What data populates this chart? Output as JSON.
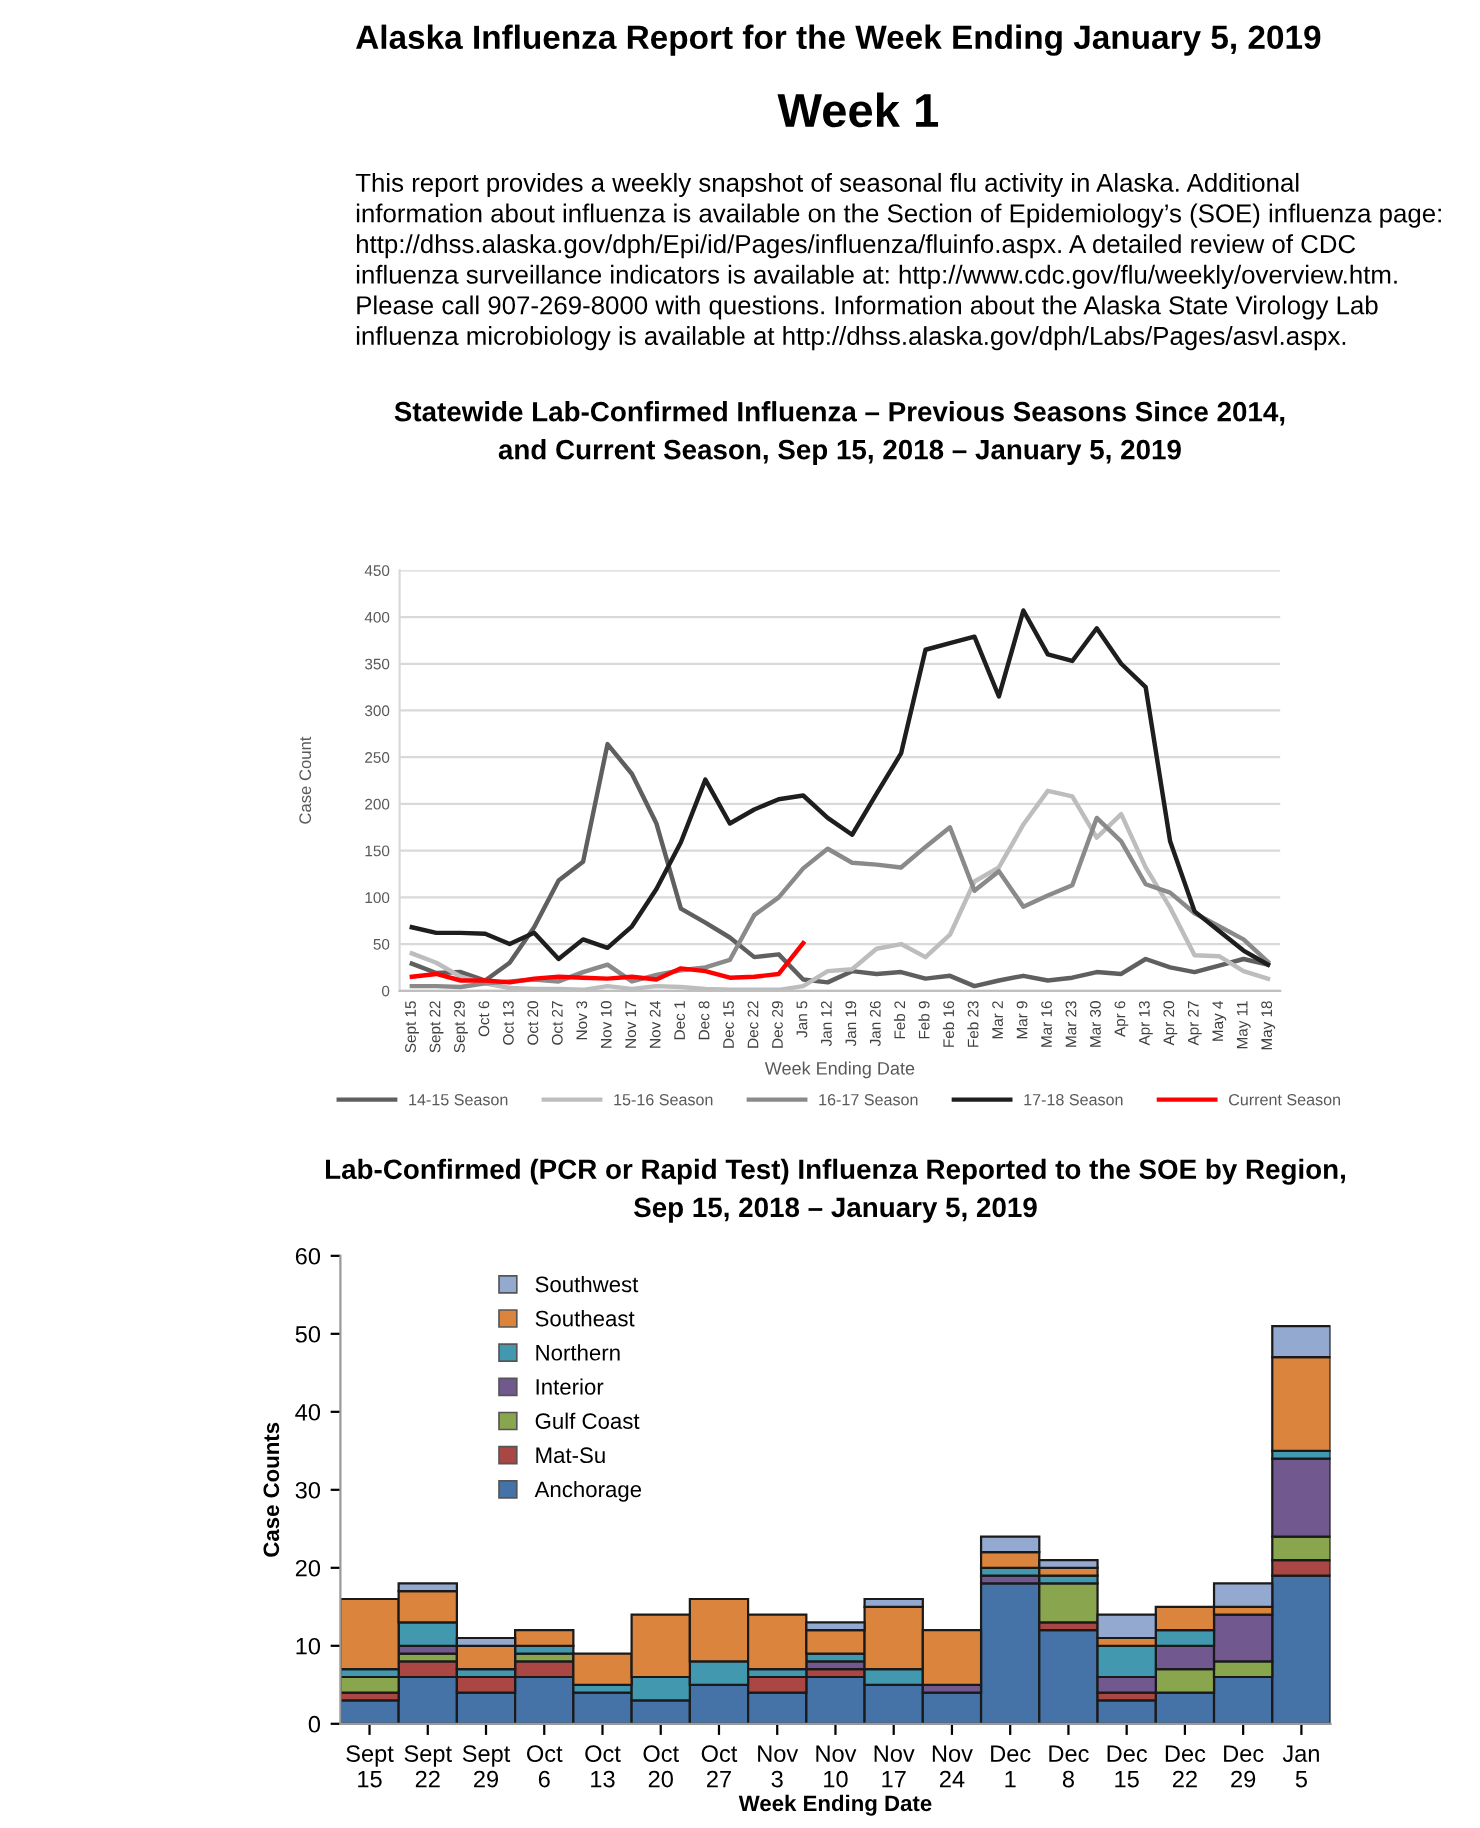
{
  "chart_data": [
    {
      "type": "other",
      "title": "Alaska Influenza Report for the Week Ending January 5, 2019",
      "subtitle": "Week 1",
      "annotations": [
        "This report provides a weekly snapshot of seasonal flu activity in Alaska. Additional\ninformation about influenza is available on the Section of Epidemiology’s (SOE) influenza page:\nhttp://dhss.alaska.gov/dph/Epi/id/Pages/influenza/fluinfo.aspx. A detailed review of CDC\ninfluenza surveillance indicators is available at: http://www.cdc.gov/flu/weekly/overview.htm.\nPlease call 907-269-8000 with questions. Information about the Alaska State Virology Lab\ninfluenza microbiology is available at http://dhss.alaska.gov/dph/Labs/Pages/asvl.aspx."
      ]
    },
    {
      "type": "line",
      "title": "Statewide Lab-Confirmed Influenza – Previous Seasons Since 2014,\nand Current Season, Sep 15, 2018 – January 5, 2019",
      "xlabel": "Week Ending Date",
      "ylabel": "Case Count",
      "categories": [
        "Sept 15",
        "Sept 22",
        "Sept 29",
        "Oct 6",
        "Oct 13",
        "Oct 20",
        "Oct 27",
        "Nov 3",
        "Nov 10",
        "Nov 17",
        "Nov 24",
        "Dec 1",
        "Dec 8",
        "Dec 15",
        "Dec 22",
        "Dec 29",
        "Jan 5",
        "Jan 12",
        "Jan 19",
        "Jan 26",
        "Feb 2",
        "Feb 9",
        "Feb 16",
        "Feb 23",
        "Mar 2",
        "Mar 9",
        "Mar 16",
        "Mar 23",
        "Mar 30",
        "Apr 6",
        "Apr 13",
        "Apr 20",
        "Apr 27",
        "May 4",
        "May 11",
        "May 18"
      ],
      "ylim": [
        0,
        450
      ],
      "yticks": [
        0,
        50,
        100,
        150,
        200,
        250,
        300,
        350,
        400,
        450
      ],
      "grid": "y",
      "legend": "bottom",
      "marker": "none",
      "line_style": "solid",
      "series": [
        {
          "name": "14-15 Season",
          "color": "#5f5f5f",
          "values": [
            29,
            19,
            20,
            11,
            30,
            68,
            118,
            138,
            264,
            232,
            179,
            88,
            73,
            57,
            36,
            39,
            12,
            9,
            21,
            18,
            20,
            13,
            16,
            5,
            11,
            16,
            11,
            14,
            20,
            18,
            34,
            25,
            20,
            27,
            34,
            28
          ]
        },
        {
          "name": "15-16 Season",
          "color": "#bdbdbd",
          "values": [
            40,
            30,
            15,
            8,
            3,
            2,
            2,
            1,
            5,
            2,
            5,
            4,
            2,
            1,
            1,
            1,
            5,
            21,
            23,
            45,
            50,
            36,
            60,
            117,
            132,
            178,
            214,
            208,
            164,
            189,
            132,
            89,
            38,
            37,
            21,
            13
          ]
        },
        {
          "name": "16-17 Season",
          "color": "#8a8a8a",
          "values": [
            5,
            5,
            4,
            8,
            10,
            12,
            10,
            20,
            28,
            10,
            17,
            22,
            25,
            33,
            81,
            100,
            131,
            152,
            137,
            135,
            132,
            154,
            175,
            107,
            128,
            90,
            102,
            113,
            185,
            160,
            114,
            105,
            83,
            69,
            55,
            31
          ]
        },
        {
          "name": "17-18 Season",
          "color": "#1e1e1e",
          "values": [
            68,
            62,
            62,
            61,
            50,
            62,
            34,
            55,
            46,
            69,
            109,
            159,
            226,
            179,
            194,
            205,
            209,
            185,
            167,
            211,
            254,
            365,
            372,
            379,
            315,
            407,
            360,
            353,
            388,
            350,
            325,
            160,
            85,
            64,
            43,
            28
          ]
        },
        {
          "name": "Current Season",
          "color": "#ff0000",
          "values": [
            15,
            18,
            11,
            11,
            9,
            13,
            15,
            14,
            13,
            15,
            12,
            24,
            21,
            14,
            15,
            18,
            51,
            null,
            null,
            null,
            null,
            null,
            null,
            null,
            null,
            null,
            null,
            null,
            null,
            null,
            null,
            null,
            null,
            null,
            null,
            null
          ]
        }
      ]
    },
    {
      "type": "bar",
      "stacked": true,
      "title": "Lab-Confirmed (PCR or Rapid Test) Influenza Reported to the SOE by Region,\nSep 15, 2018 – January 5, 2019",
      "xlabel": "Week Ending Date",
      "ylabel": "Case Counts",
      "categories": [
        "Sept\n15",
        "Sept\n22",
        "Sept\n29",
        "Oct\n6",
        "Oct\n13",
        "Oct\n20",
        "Oct\n27",
        "Nov\n3",
        "Nov\n10",
        "Nov\n17",
        "Nov\n24",
        "Dec\n1",
        "Dec\n8",
        "Dec\n15",
        "Dec\n22",
        "Dec\n29",
        "Jan\n5"
      ],
      "ylim": [
        0,
        60
      ],
      "yticks": [
        0,
        10,
        20,
        30,
        40,
        50,
        60
      ],
      "grid": false,
      "legend": "top left",
      "series": [
        {
          "name": "Anchorage",
          "color": "#4572a7",
          "values": [
            3,
            6,
            4,
            6,
            4,
            3,
            5,
            4,
            6,
            5,
            4,
            18,
            12,
            3,
            4,
            6,
            19
          ]
        },
        {
          "name": "Mat-Su",
          "color": "#aa4643",
          "values": [
            1,
            2,
            2,
            2,
            0,
            0,
            0,
            2,
            1,
            0,
            0,
            0,
            1,
            1,
            0,
            0,
            2
          ]
        },
        {
          "name": "Gulf Coast",
          "color": "#89a54e",
          "values": [
            2,
            1,
            0,
            1,
            0,
            0,
            0,
            0,
            0,
            0,
            0,
            0,
            5,
            0,
            3,
            2,
            3
          ]
        },
        {
          "name": "Interior",
          "color": "#71588f",
          "values": [
            0,
            1,
            0,
            0,
            0,
            0,
            0,
            0,
            1,
            0,
            1,
            1,
            0,
            2,
            3,
            6,
            10
          ]
        },
        {
          "name": "Northern",
          "color": "#4198af",
          "values": [
            1,
            3,
            1,
            1,
            1,
            3,
            3,
            1,
            1,
            2,
            0,
            1,
            1,
            4,
            2,
            0,
            1
          ]
        },
        {
          "name": "Southeast",
          "color": "#db843d",
          "values": [
            9,
            4,
            3,
            2,
            4,
            8,
            8,
            7,
            3,
            8,
            7,
            2,
            1,
            1,
            3,
            1,
            12
          ]
        },
        {
          "name": "Southwest",
          "color": "#93a9cf",
          "values": [
            0,
            1,
            1,
            0,
            0,
            0,
            0,
            0,
            1,
            1,
            0,
            2,
            1,
            3,
            0,
            3,
            4
          ]
        }
      ]
    }
  ]
}
